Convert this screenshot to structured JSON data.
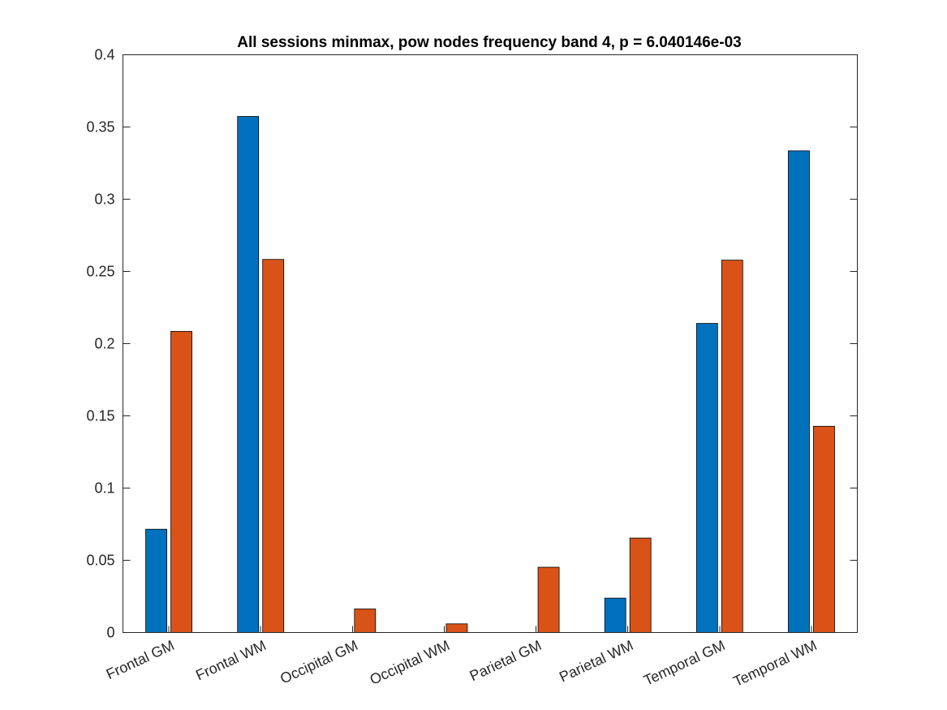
{
  "chart_data": {
    "type": "bar",
    "title": "All sessions minmax, pow nodes frequency band 4, p = 6.040146e-03",
    "xlabel": "",
    "ylabel": "",
    "categories": [
      "Frontal GM",
      "Frontal WM",
      "Occipital GM",
      "Occipital WM",
      "Parietal GM",
      "Parietal WM",
      "Temporal GM",
      "Temporal WM"
    ],
    "series": [
      {
        "color": "#0072BD",
        "values": [
          0.0715,
          0.3573,
          0.0,
          0.0,
          0.0,
          0.0238,
          0.214,
          0.3335
        ]
      },
      {
        "color": "#D95319",
        "values": [
          0.2085,
          0.2583,
          0.0163,
          0.006,
          0.0452,
          0.0654,
          0.2578,
          0.1428
        ]
      }
    ],
    "ylim": [
      0,
      0.4
    ],
    "yticks": [
      "0",
      "0.05",
      "0.1",
      "0.15",
      "0.2",
      "0.25",
      "0.3",
      "0.35",
      "0.4"
    ],
    "grid": false,
    "legend": "none"
  }
}
